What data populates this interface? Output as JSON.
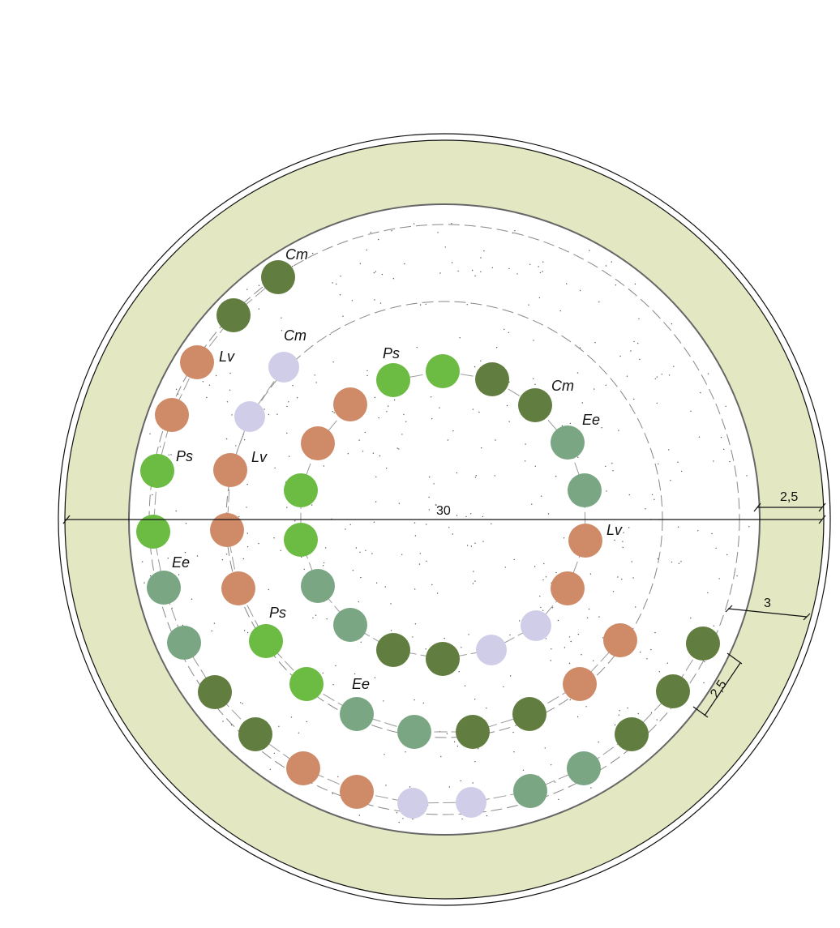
{
  "colors": {
    "Cm": "#617d3f",
    "Lv": "#cf8a68",
    "Ps": "#6cbb43",
    "Ee": "#7aa683",
    "lavender": "#d0cde8",
    "border": "#e3e8c3"
  },
  "labels": [
    {
      "id": "cm-1",
      "text": "Cm"
    },
    {
      "id": "cm-2",
      "text": "Cm"
    },
    {
      "id": "cm-3",
      "text": "Cm"
    },
    {
      "id": "lv-1",
      "text": "Lv"
    },
    {
      "id": "lv-2",
      "text": "Lv"
    },
    {
      "id": "lv-3",
      "text": "Lv"
    },
    {
      "id": "ps-1",
      "text": "Ps"
    },
    {
      "id": "ps-2",
      "text": "Ps"
    },
    {
      "id": "ps-3",
      "text": "Ps"
    },
    {
      "id": "ee-1",
      "text": "Ee"
    },
    {
      "id": "ee-2",
      "text": "Ee"
    },
    {
      "id": "ee-3",
      "text": "Ee"
    }
  ],
  "dimensions": {
    "diameter": "30",
    "border_width": "2,5",
    "border_diagonal": "3",
    "plant_spacing": "2,5"
  },
  "rings": [
    {
      "name": "outer-spiral",
      "plants": [
        "Cm",
        "Cm",
        "Lv",
        "Lv",
        "Ps",
        "Ps",
        "Ee",
        "Ee",
        "Cm",
        "Cm",
        "Lv",
        "Lv",
        "lavender",
        "lavender",
        "Ee",
        "Ee",
        "Cm",
        "Cm",
        "Cm"
      ]
    },
    {
      "name": "middle-ring",
      "plants": [
        "lavender",
        "lavender",
        "Lv",
        "Lv",
        "Lv",
        "Ps",
        "Ps",
        "Ee",
        "Ee",
        "Cm",
        "Cm",
        "Lv",
        "Lv"
      ]
    },
    {
      "name": "inner-ring",
      "plants": [
        "Ps",
        "Ps",
        "Cm",
        "Cm",
        "Ee",
        "Ee",
        "Lv",
        "Lv",
        "lavender",
        "lavender",
        "Cm",
        "Cm",
        "Ee",
        "Ee",
        "Ps",
        "Ps",
        "Lv",
        "Lv"
      ]
    }
  ]
}
